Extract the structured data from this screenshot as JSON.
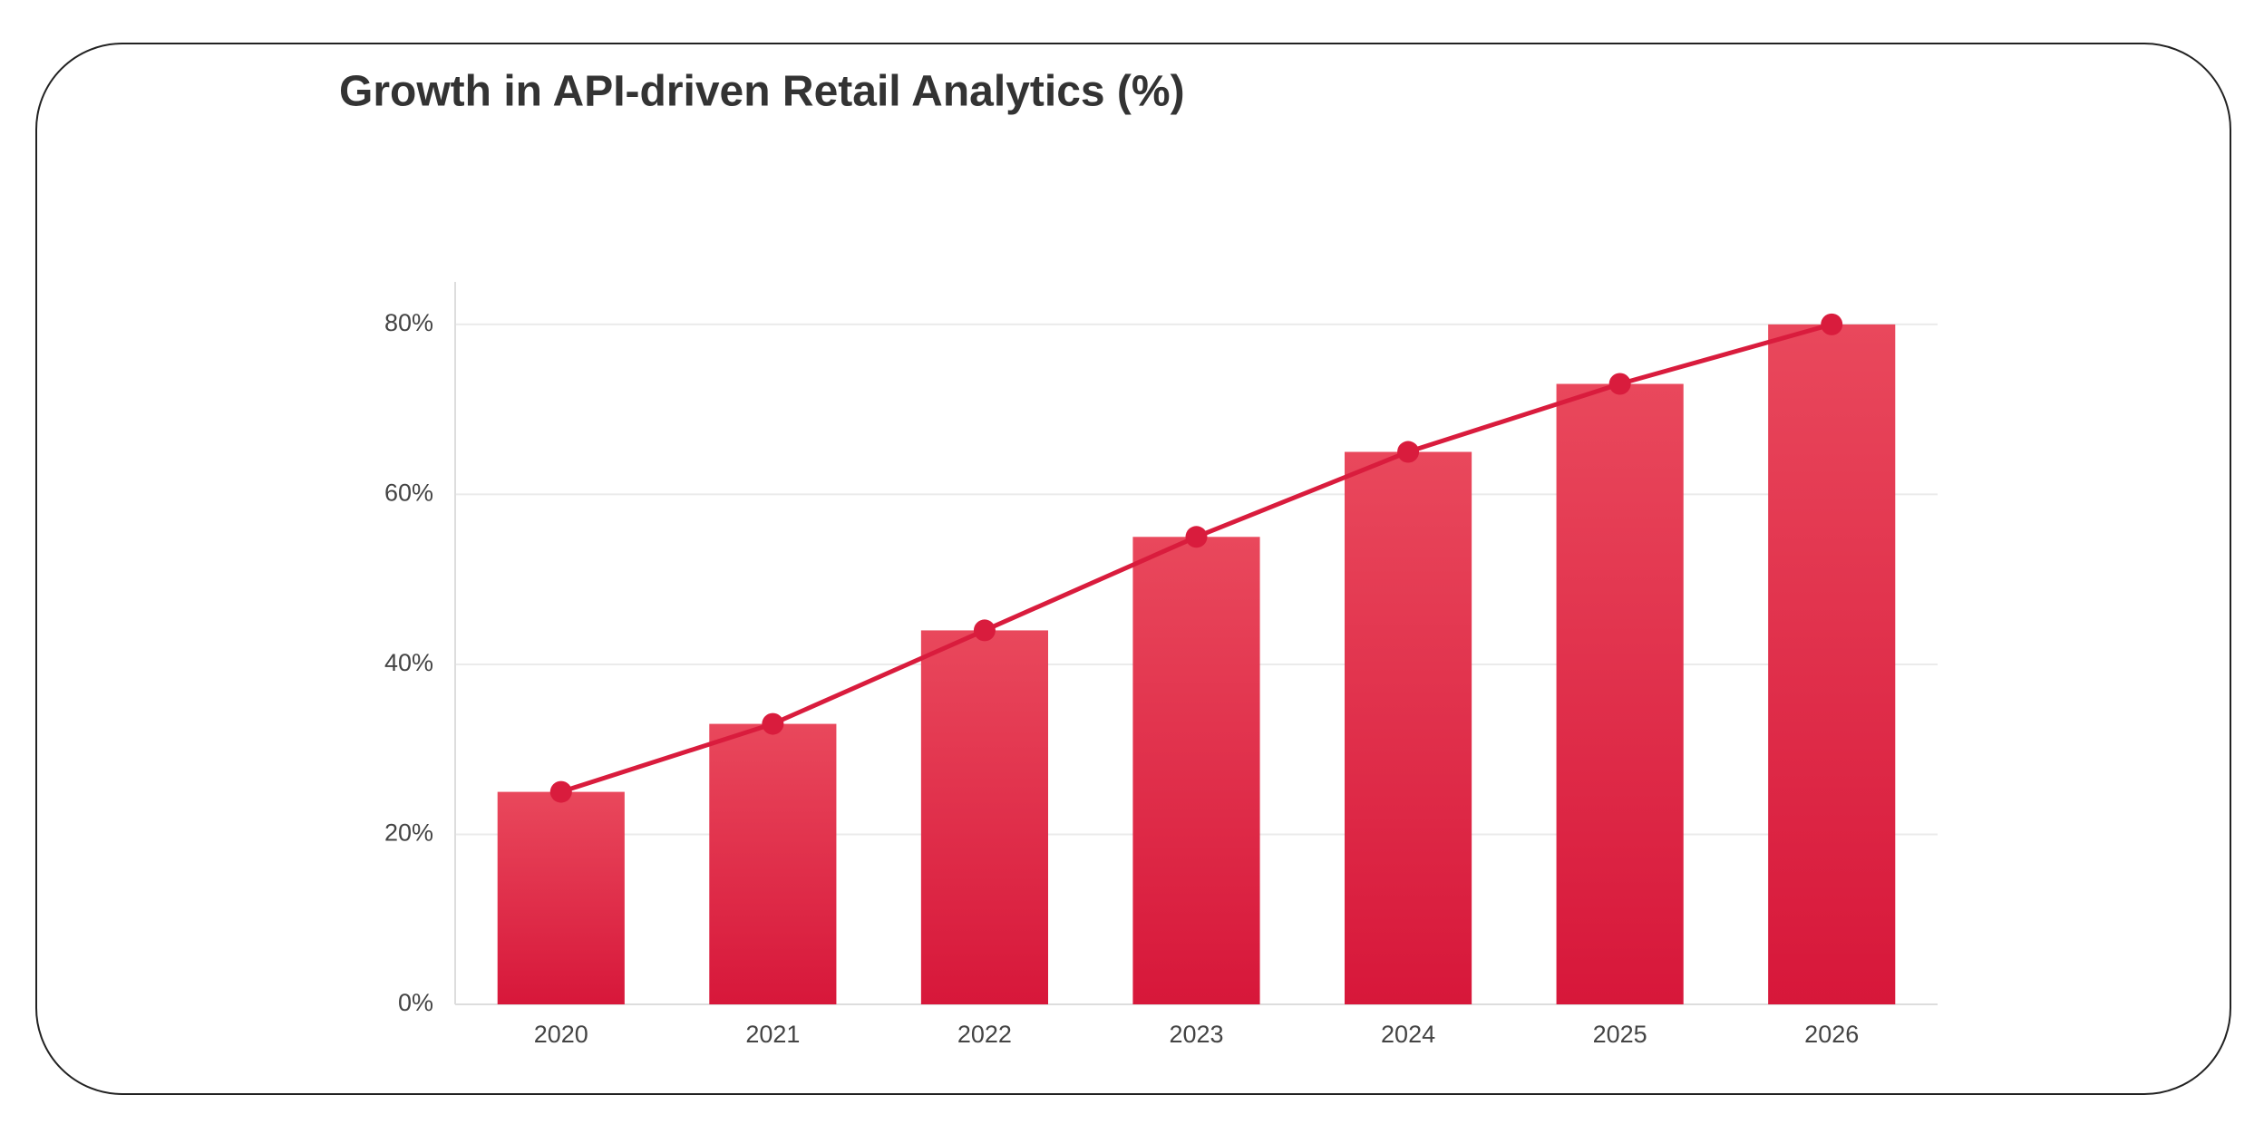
{
  "chart_data": {
    "type": "bar",
    "title": "Growth in API-driven Retail Analytics (%)",
    "categories": [
      "2020",
      "2021",
      "2022",
      "2023",
      "2024",
      "2025",
      "2026"
    ],
    "values": [
      25,
      33,
      44,
      55,
      65,
      73,
      80
    ],
    "color": "#d7173a",
    "gradient_top_color": "#e9485c",
    "overlay_line": true,
    "line_color": "#d91c3d",
    "ylim": [
      0,
      85
    ],
    "yticks": [
      {
        "value": 0,
        "label": "0%"
      },
      {
        "value": 20,
        "label": "20%"
      },
      {
        "value": 40,
        "label": "40%"
      },
      {
        "value": 60,
        "label": "60%"
      },
      {
        "value": 80,
        "label": "80%"
      }
    ],
    "grid": true
  }
}
